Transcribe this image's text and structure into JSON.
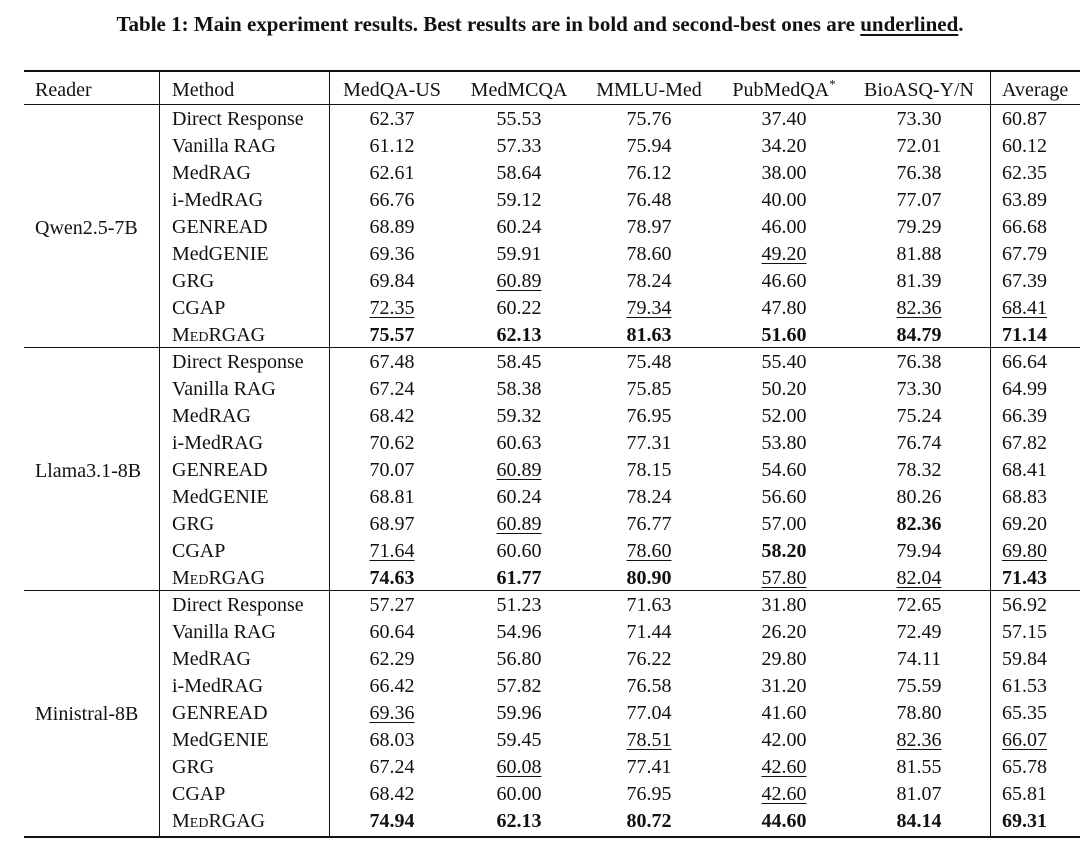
{
  "caption": {
    "main": "Table 1: Main experiment results. Best results are in bold and second-best ones are ",
    "underlined_word": "underlined",
    "end": "."
  },
  "table": {
    "header": {
      "reader": "Reader",
      "method": "Method",
      "columns": [
        "MedQA-US",
        "MedMCQA",
        "MMLU-Med",
        "PubMedQA",
        "BioASQ-Y/N",
        "Average"
      ],
      "pubmedqa_mark": "*"
    },
    "groups": [
      {
        "reader": "Qwen2.5-7B",
        "rows": [
          {
            "method": "Direct Response",
            "values": [
              "62.37",
              "55.53",
              "75.76",
              "37.40",
              "73.30",
              "60.87"
            ],
            "bold": [],
            "underline": []
          },
          {
            "method": "Vanilla RAG",
            "values": [
              "61.12",
              "57.33",
              "75.94",
              "34.20",
              "72.01",
              "60.12"
            ],
            "bold": [],
            "underline": []
          },
          {
            "method": "MedRAG",
            "values": [
              "62.61",
              "58.64",
              "76.12",
              "38.00",
              "76.38",
              "62.35"
            ],
            "bold": [],
            "underline": []
          },
          {
            "method": "i-MedRAG",
            "values": [
              "66.76",
              "59.12",
              "76.48",
              "40.00",
              "77.07",
              "63.89"
            ],
            "bold": [],
            "underline": []
          },
          {
            "method": "GENREAD",
            "values": [
              "68.89",
              "60.24",
              "78.97",
              "46.00",
              "79.29",
              "66.68"
            ],
            "bold": [],
            "underline": []
          },
          {
            "method": "MedGENIE",
            "values": [
              "69.36",
              "59.91",
              "78.60",
              "49.20",
              "81.88",
              "67.79"
            ],
            "bold": [],
            "underline": [
              3
            ]
          },
          {
            "method": "GRG",
            "values": [
              "69.84",
              "60.89",
              "78.24",
              "46.60",
              "81.39",
              "67.39"
            ],
            "bold": [],
            "underline": [
              1
            ]
          },
          {
            "method": "CGAP",
            "values": [
              "72.35",
              "60.22",
              "79.34",
              "47.80",
              "82.36",
              "68.41"
            ],
            "bold": [],
            "underline": [
              0,
              2,
              4,
              5
            ]
          },
          {
            "method": "MedRGAG",
            "values": [
              "75.57",
              "62.13",
              "81.63",
              "51.60",
              "84.79",
              "71.14"
            ],
            "bold": [
              0,
              1,
              2,
              3,
              4,
              5
            ],
            "underline": []
          }
        ]
      },
      {
        "reader": "Llama3.1-8B",
        "rows": [
          {
            "method": "Direct Response",
            "values": [
              "67.48",
              "58.45",
              "75.48",
              "55.40",
              "76.38",
              "66.64"
            ],
            "bold": [],
            "underline": []
          },
          {
            "method": "Vanilla RAG",
            "values": [
              "67.24",
              "58.38",
              "75.85",
              "50.20",
              "73.30",
              "64.99"
            ],
            "bold": [],
            "underline": []
          },
          {
            "method": "MedRAG",
            "values": [
              "68.42",
              "59.32",
              "76.95",
              "52.00",
              "75.24",
              "66.39"
            ],
            "bold": [],
            "underline": []
          },
          {
            "method": "i-MedRAG",
            "values": [
              "70.62",
              "60.63",
              "77.31",
              "53.80",
              "76.74",
              "67.82"
            ],
            "bold": [],
            "underline": []
          },
          {
            "method": "GENREAD",
            "values": [
              "70.07",
              "60.89",
              "78.15",
              "54.60",
              "78.32",
              "68.41"
            ],
            "bold": [],
            "underline": [
              1
            ]
          },
          {
            "method": "MedGENIE",
            "values": [
              "68.81",
              "60.24",
              "78.24",
              "56.60",
              "80.26",
              "68.83"
            ],
            "bold": [],
            "underline": []
          },
          {
            "method": "GRG",
            "values": [
              "68.97",
              "60.89",
              "76.77",
              "57.00",
              "82.36",
              "69.20"
            ],
            "bold": [
              4
            ],
            "underline": [
              1
            ]
          },
          {
            "method": "CGAP",
            "values": [
              "71.64",
              "60.60",
              "78.60",
              "58.20",
              "79.94",
              "69.80"
            ],
            "bold": [
              3
            ],
            "underline": [
              0,
              2,
              5
            ]
          },
          {
            "method": "MedRGAG",
            "values": [
              "74.63",
              "61.77",
              "80.90",
              "57.80",
              "82.04",
              "71.43"
            ],
            "bold": [
              0,
              1,
              2,
              5
            ],
            "underline": [
              3,
              4
            ]
          }
        ]
      },
      {
        "reader": "Ministral-8B",
        "rows": [
          {
            "method": "Direct Response",
            "values": [
              "57.27",
              "51.23",
              "71.63",
              "31.80",
              "72.65",
              "56.92"
            ],
            "bold": [],
            "underline": []
          },
          {
            "method": "Vanilla RAG",
            "values": [
              "60.64",
              "54.96",
              "71.44",
              "26.20",
              "72.49",
              "57.15"
            ],
            "bold": [],
            "underline": []
          },
          {
            "method": "MedRAG",
            "values": [
              "62.29",
              "56.80",
              "76.22",
              "29.80",
              "74.11",
              "59.84"
            ],
            "bold": [],
            "underline": []
          },
          {
            "method": "i-MedRAG",
            "values": [
              "66.42",
              "57.82",
              "76.58",
              "31.20",
              "75.59",
              "61.53"
            ],
            "bold": [],
            "underline": []
          },
          {
            "method": "GENREAD",
            "values": [
              "69.36",
              "59.96",
              "77.04",
              "41.60",
              "78.80",
              "65.35"
            ],
            "bold": [],
            "underline": [
              0
            ]
          },
          {
            "method": "MedGENIE",
            "values": [
              "68.03",
              "59.45",
              "78.51",
              "42.00",
              "82.36",
              "66.07"
            ],
            "bold": [],
            "underline": [
              2,
              4,
              5
            ]
          },
          {
            "method": "GRG",
            "values": [
              "67.24",
              "60.08",
              "77.41",
              "42.60",
              "81.55",
              "65.78"
            ],
            "bold": [],
            "underline": [
              1,
              3
            ]
          },
          {
            "method": "CGAP",
            "values": [
              "68.42",
              "60.00",
              "76.95",
              "42.60",
              "81.07",
              "65.81"
            ],
            "bold": [],
            "underline": [
              3
            ]
          },
          {
            "method": "MedRGAG",
            "values": [
              "74.94",
              "62.13",
              "80.72",
              "44.60",
              "84.14",
              "69.31"
            ],
            "bold": [
              0,
              1,
              2,
              3,
              4,
              5
            ],
            "underline": []
          }
        ]
      }
    ]
  }
}
